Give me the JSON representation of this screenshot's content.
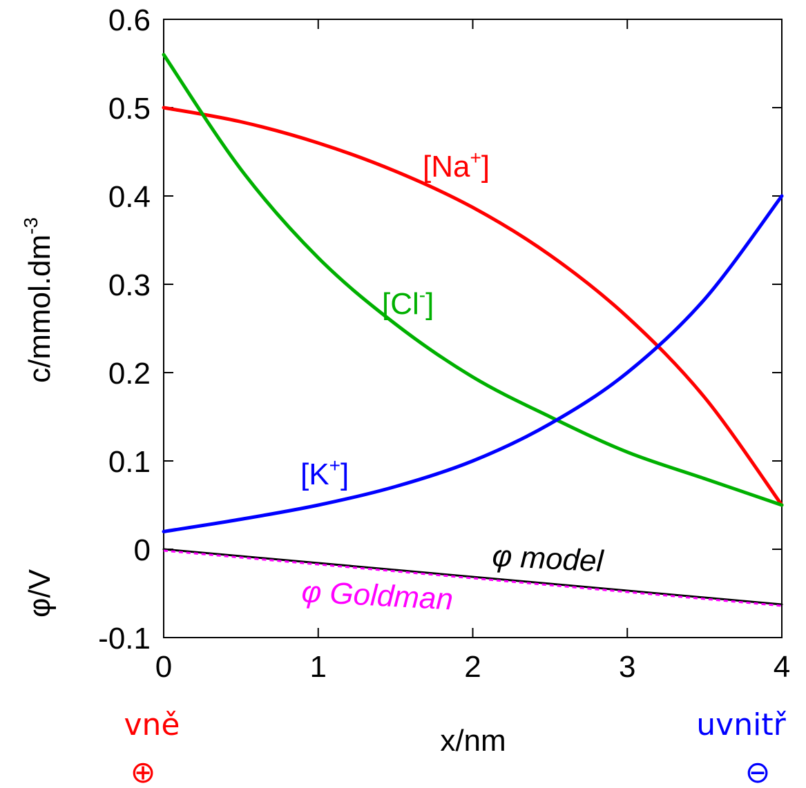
{
  "chart_data": {
    "type": "line",
    "xlabel": "x/nm",
    "ylabel_top": "c/mmol.dm",
    "ylabel_top_sup": "-3",
    "ylabel_bottom": "φ/V",
    "xlim": [
      0,
      4
    ],
    "ylim": [
      -0.1,
      0.6
    ],
    "x_ticks": [
      "0",
      "1",
      "2",
      "3",
      "4"
    ],
    "y_ticks": [
      "-0.1",
      "0",
      "0.1",
      "0.2",
      "0.3",
      "0.4",
      "0.5",
      "0.6"
    ],
    "grid": false,
    "series": [
      {
        "name": "[Na+]",
        "label_main": "[Na",
        "label_sup": "+",
        "label_end": "]",
        "color": "#ff0000",
        "x": [
          0,
          0.5,
          1,
          1.5,
          2,
          2.5,
          3,
          3.5,
          4
        ],
        "y": [
          0.5,
          0.484,
          0.46,
          0.428,
          0.387,
          0.333,
          0.263,
          0.172,
          0.05
        ]
      },
      {
        "name": "[Cl-]",
        "label_main": "[Cl",
        "label_sup": "-",
        "label_end": "]",
        "color": "#00b000",
        "x": [
          0,
          0.5,
          1,
          1.5,
          2,
          2.5,
          3,
          3.5,
          4
        ],
        "y": [
          0.56,
          0.43,
          0.33,
          0.255,
          0.195,
          0.15,
          0.11,
          0.08,
          0.05
        ]
      },
      {
        "name": "[K+]",
        "label_main": "[K",
        "label_sup": "+",
        "label_end": "]",
        "color": "#0000ff",
        "x": [
          0,
          0.5,
          1,
          1.5,
          2,
          2.5,
          3,
          3.5,
          4
        ],
        "y": [
          0.02,
          0.034,
          0.05,
          0.071,
          0.1,
          0.142,
          0.2,
          0.283,
          0.4
        ]
      },
      {
        "name": "φ model",
        "color": "#000000",
        "x": [
          0,
          4
        ],
        "y": [
          0,
          -0.0625
        ]
      },
      {
        "name": "φ Goldman",
        "color": "#ff00ff",
        "x": [
          0,
          4
        ],
        "y": [
          0,
          -0.0625
        ]
      }
    ],
    "side_labels": {
      "left": "vně",
      "left_symbol": "⊕",
      "left_color": "#ff0000",
      "right": "uvnitř",
      "right_symbol": "⊖",
      "right_color": "#0000ff"
    }
  }
}
